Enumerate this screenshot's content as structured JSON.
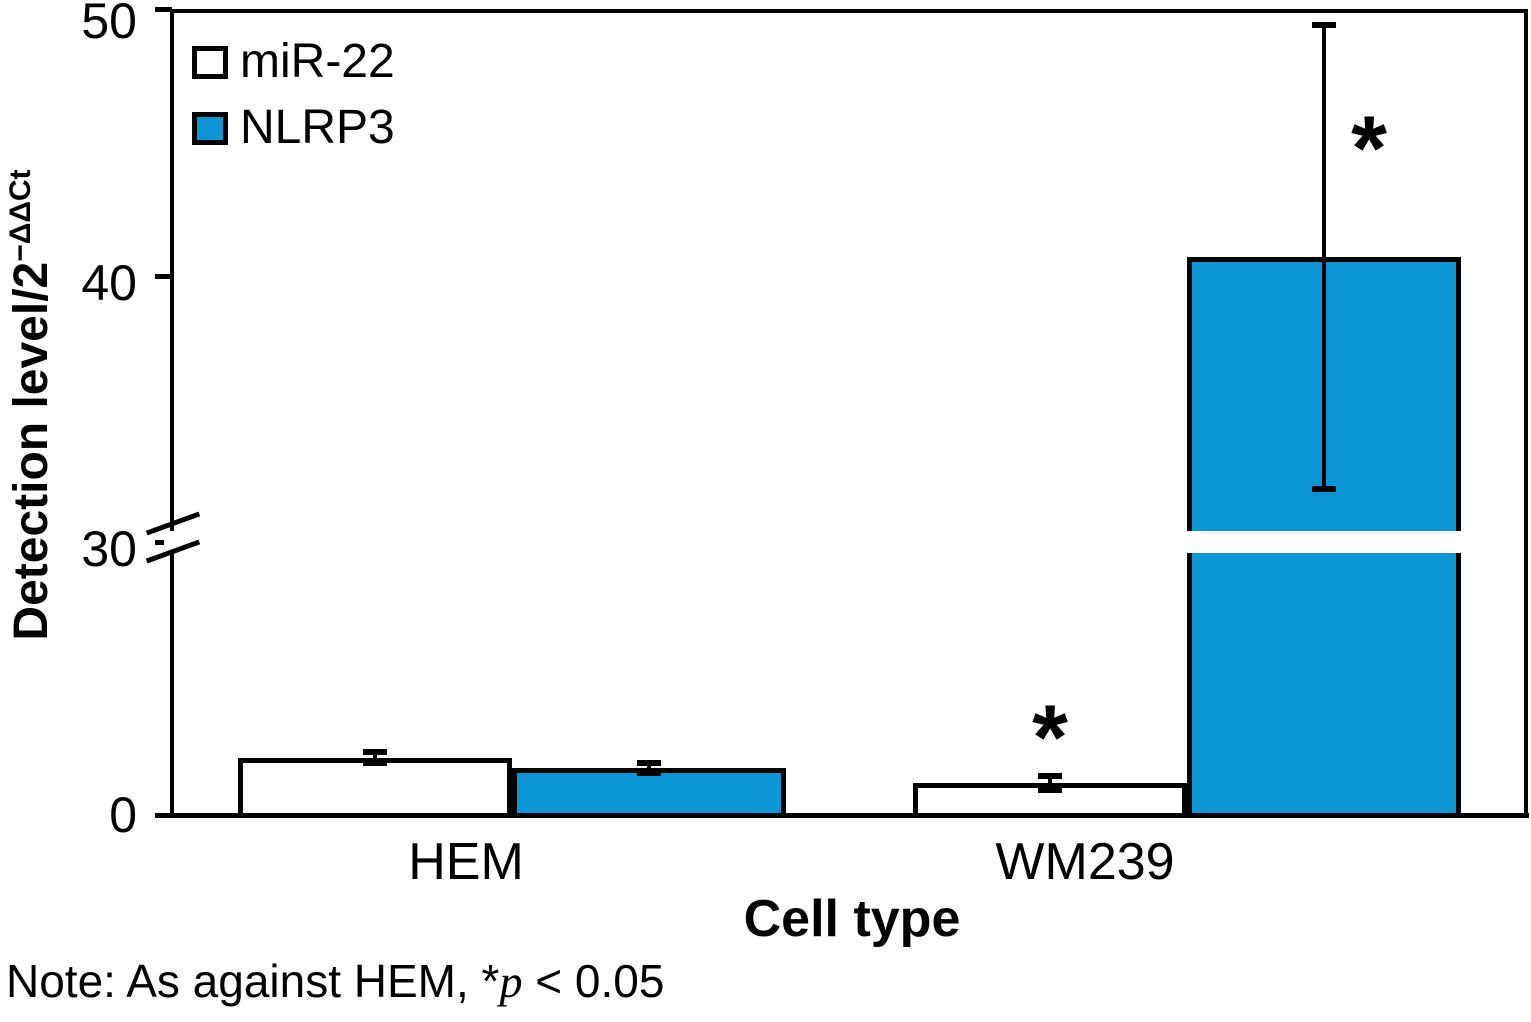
{
  "chart_data": {
    "type": "bar",
    "title": "",
    "xlabel": "Cell type",
    "ylabel": "Detection level/2",
    "ylabel_superscript": "−ΔΔCt",
    "categories": [
      "HEM",
      "WM239"
    ],
    "series": [
      {
        "name": "miR-22",
        "fill": "#ffffff",
        "values": [
          6.4,
          3.6
        ],
        "errors": [
          0.65,
          0.8
        ],
        "significant": [
          false,
          true
        ]
      },
      {
        "name": "NLRP3",
        "fill": "#0b95d5",
        "values": [
          5.3,
          40.7
        ],
        "errors": [
          0.55,
          8.7
        ],
        "significant": [
          false,
          true
        ]
      }
    ],
    "y_ticks": [
      0,
      30,
      40,
      50
    ],
    "y_axis_break_at": 30,
    "ylim_lower_segment": [
      0,
      30
    ],
    "ylim_upper_segment": [
      30,
      50
    ],
    "significance_marker": "*",
    "legend_position": "upper-left",
    "grid": false,
    "bar_edge_color": "#000000",
    "note": {
      "prefix": "Note: As against HEM, *",
      "italic": "p",
      "suffix": " < 0.05"
    }
  }
}
